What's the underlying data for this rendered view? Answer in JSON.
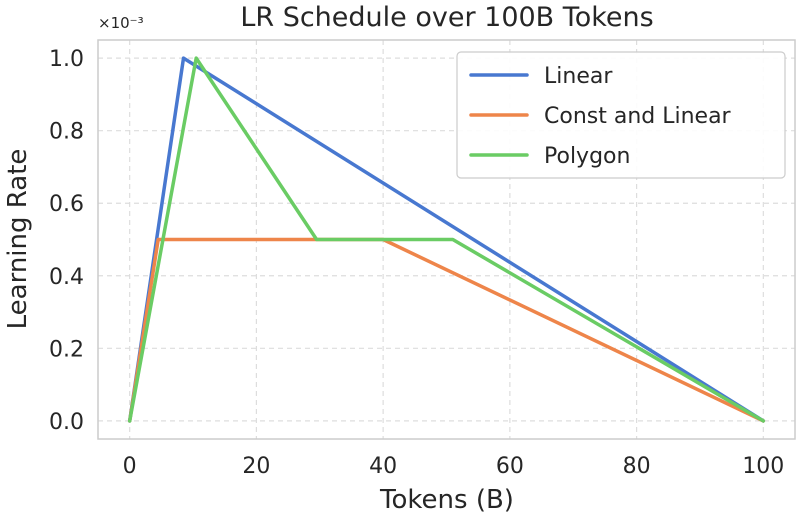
{
  "chart_data": {
    "type": "line",
    "title": "LR Schedule over 100B Tokens",
    "xlabel": "Tokens (B)",
    "ylabel": "Learning Rate",
    "y_offset_label": "×10⁻³",
    "xlim": [
      -5,
      105
    ],
    "ylim": [
      -0.05,
      1.05
    ],
    "x_ticks": [
      0,
      20,
      40,
      60,
      80,
      100
    ],
    "x_tick_labels": [
      "0",
      "20",
      "40",
      "60",
      "80",
      "100"
    ],
    "y_ticks": [
      0.0,
      0.2,
      0.4,
      0.6,
      0.8,
      1.0
    ],
    "y_tick_labels": [
      "0.0",
      "0.2",
      "0.4",
      "0.6",
      "0.8",
      "1.0"
    ],
    "grid": true,
    "legend_position": "top-right",
    "series": [
      {
        "name": "Linear",
        "color": "#4878d0",
        "x": [
          0,
          8.5,
          100
        ],
        "y": [
          0.0,
          1.0,
          0.0
        ]
      },
      {
        "name": "Const and Linear",
        "color": "#ee854a",
        "x": [
          0,
          4.5,
          40,
          100
        ],
        "y": [
          0.0,
          0.5,
          0.5,
          0.0
        ]
      },
      {
        "name": "Polygon",
        "color": "#6acc64",
        "x": [
          0,
          10.5,
          29.5,
          51,
          100
        ],
        "y": [
          0.0,
          1.0,
          0.5,
          0.5,
          0.0
        ]
      }
    ]
  }
}
